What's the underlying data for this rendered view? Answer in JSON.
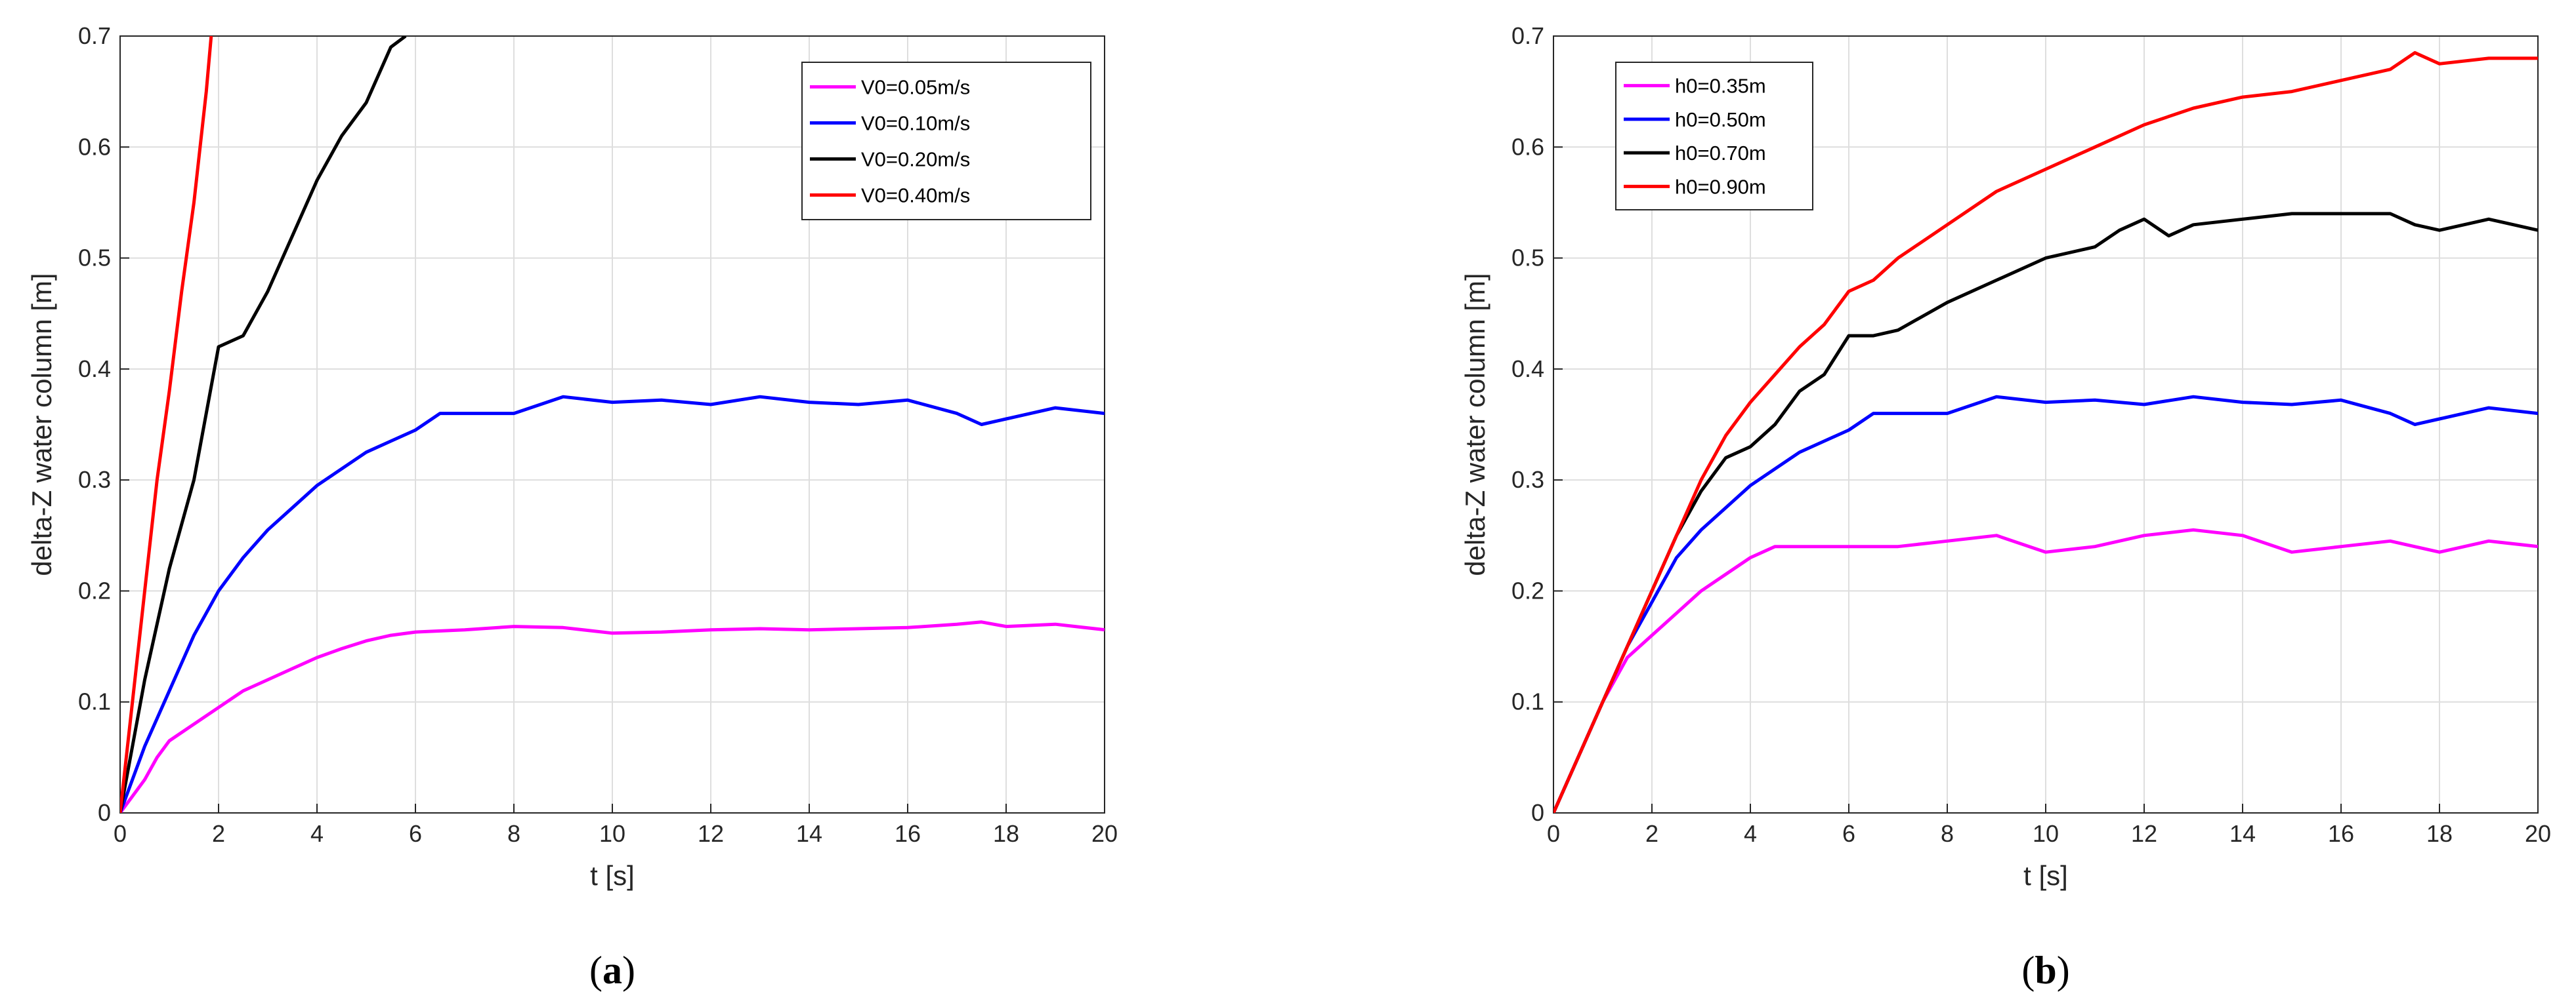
{
  "colors": {
    "magenta": "#ff00ff",
    "blue": "#0000ff",
    "black": "#000000",
    "red": "#ff0000",
    "grid": "#dedede",
    "axis": "#262626"
  },
  "chart_data": [
    {
      "type": "line",
      "panel_caption": {
        "open": "(",
        "letter": "a",
        "close": ")"
      },
      "xlabel": "t [s]",
      "ylabel": "delta-Z water column [m]",
      "xlim": [
        0,
        20
      ],
      "ylim": [
        0,
        0.7
      ],
      "xticks": [
        "0",
        "2",
        "4",
        "6",
        "8",
        "10",
        "12",
        "14",
        "16",
        "18",
        "20"
      ],
      "yticks": [
        "0",
        "0.1",
        "0.2",
        "0.3",
        "0.4",
        "0.5",
        "0.6",
        "0.7"
      ],
      "grid": true,
      "legend_position": "top-right",
      "series": [
        {
          "name": "V0=0.05m/s",
          "color": "#ff00ff",
          "x": [
            0,
            0.25,
            0.5,
            0.75,
            1.0,
            1.5,
            2.0,
            2.5,
            3.0,
            3.5,
            4.0,
            4.5,
            5.0,
            5.5,
            6.0,
            7.0,
            8.0,
            9.0,
            10.0,
            11.0,
            12.0,
            13.0,
            14.0,
            15.0,
            16.0,
            17.0,
            17.5,
            18.0,
            19.0,
            20.0
          ],
          "y": [
            0,
            0.015,
            0.03,
            0.05,
            0.065,
            0.08,
            0.095,
            0.11,
            0.12,
            0.13,
            0.14,
            0.148,
            0.155,
            0.16,
            0.163,
            0.165,
            0.168,
            0.167,
            0.162,
            0.163,
            0.165,
            0.166,
            0.165,
            0.166,
            0.167,
            0.17,
            0.172,
            0.168,
            0.17,
            0.165
          ]
        },
        {
          "name": "V0=0.10m/s",
          "color": "#0000ff",
          "x": [
            0,
            0.5,
            1.0,
            1.5,
            2.0,
            2.5,
            3.0,
            3.5,
            4.0,
            4.5,
            5.0,
            5.5,
            6.0,
            6.5,
            7.0,
            8.0,
            9.0,
            10.0,
            11.0,
            12.0,
            13.0,
            14.0,
            15.0,
            16.0,
            17.0,
            17.5,
            18.0,
            19.0,
            20.0
          ],
          "y": [
            0,
            0.06,
            0.11,
            0.16,
            0.2,
            0.23,
            0.255,
            0.275,
            0.295,
            0.31,
            0.325,
            0.335,
            0.345,
            0.36,
            0.36,
            0.36,
            0.375,
            0.37,
            0.372,
            0.368,
            0.375,
            0.37,
            0.368,
            0.372,
            0.36,
            0.35,
            0.355,
            0.365,
            0.36
          ]
        },
        {
          "name": "V0=0.20m/s",
          "color": "#000000",
          "x": [
            0,
            0.25,
            0.5,
            1.0,
            1.5,
            2.0,
            2.5,
            3.0,
            3.5,
            4.0,
            4.5,
            5.0,
            5.5,
            5.8
          ],
          "y": [
            0,
            0.06,
            0.12,
            0.22,
            0.3,
            0.42,
            0.43,
            0.47,
            0.52,
            0.57,
            0.61,
            0.64,
            0.69,
            0.7
          ]
        },
        {
          "name": "V0=0.40m/s",
          "color": "#ff0000",
          "x": [
            0,
            0.25,
            0.5,
            0.75,
            1.0,
            1.25,
            1.5,
            1.75,
            1.85
          ],
          "y": [
            0,
            0.1,
            0.2,
            0.3,
            0.38,
            0.47,
            0.55,
            0.65,
            0.7
          ]
        }
      ]
    },
    {
      "type": "line",
      "panel_caption": {
        "open": "(",
        "letter": "b",
        "close": ")"
      },
      "xlabel": "t [s]",
      "ylabel": "delta-Z water column [m]",
      "xlim": [
        0,
        20
      ],
      "ylim": [
        0,
        0.7
      ],
      "xticks": [
        "0",
        "2",
        "4",
        "6",
        "8",
        "10",
        "12",
        "14",
        "16",
        "18",
        "20"
      ],
      "yticks": [
        "0",
        "0.1",
        "0.2",
        "0.3",
        "0.4",
        "0.5",
        "0.6",
        "0.7"
      ],
      "grid": true,
      "legend_position": "top-left",
      "series": [
        {
          "name": "h0=0.35m",
          "color": "#ff00ff",
          "x": [
            0,
            0.5,
            1.0,
            1.5,
            2.0,
            2.5,
            3.0,
            3.5,
            4.0,
            4.5,
            5.0,
            6.0,
            7.0,
            8.0,
            9.0,
            10.0,
            11.0,
            12.0,
            13.0,
            14.0,
            15.0,
            16.0,
            17.0,
            18.0,
            19.0,
            20.0
          ],
          "y": [
            0,
            0.05,
            0.1,
            0.14,
            0.16,
            0.18,
            0.2,
            0.215,
            0.23,
            0.24,
            0.24,
            0.24,
            0.24,
            0.245,
            0.25,
            0.235,
            0.24,
            0.25,
            0.255,
            0.25,
            0.235,
            0.24,
            0.245,
            0.235,
            0.245,
            0.24
          ]
        },
        {
          "name": "h0=0.50m",
          "color": "#0000ff",
          "x": [
            0,
            0.5,
            1.0,
            1.5,
            2.0,
            2.5,
            3.0,
            3.5,
            4.0,
            4.5,
            5.0,
            5.5,
            6.0,
            6.5,
            7.0,
            8.0,
            9.0,
            10.0,
            11.0,
            12.0,
            13.0,
            14.0,
            15.0,
            16.0,
            17.0,
            17.5,
            18.0,
            19.0,
            20.0
          ],
          "y": [
            0,
            0.05,
            0.1,
            0.15,
            0.19,
            0.23,
            0.255,
            0.275,
            0.295,
            0.31,
            0.325,
            0.335,
            0.345,
            0.36,
            0.36,
            0.36,
            0.375,
            0.37,
            0.372,
            0.368,
            0.375,
            0.37,
            0.368,
            0.372,
            0.36,
            0.35,
            0.355,
            0.365,
            0.36
          ]
        },
        {
          "name": "h0=0.70m",
          "color": "#000000",
          "x": [
            0,
            0.5,
            1.0,
            1.5,
            2.0,
            2.5,
            3.0,
            3.5,
            4.0,
            4.5,
            5.0,
            5.5,
            6.0,
            6.5,
            7.0,
            8.0,
            9.0,
            10.0,
            11.0,
            11.5,
            12.0,
            12.5,
            13.0,
            14.0,
            15.0,
            16.0,
            17.0,
            17.5,
            18.0,
            19.0,
            20.0
          ],
          "y": [
            0,
            0.05,
            0.1,
            0.15,
            0.2,
            0.25,
            0.29,
            0.32,
            0.33,
            0.35,
            0.38,
            0.395,
            0.43,
            0.43,
            0.435,
            0.46,
            0.48,
            0.5,
            0.51,
            0.525,
            0.535,
            0.52,
            0.53,
            0.535,
            0.54,
            0.54,
            0.54,
            0.53,
            0.525,
            0.535,
            0.525
          ]
        },
        {
          "name": "h0=0.90m",
          "color": "#ff0000",
          "x": [
            0,
            0.5,
            1.0,
            1.5,
            2.0,
            2.5,
            3.0,
            3.5,
            4.0,
            4.5,
            5.0,
            5.5,
            6.0,
            6.5,
            7.0,
            8.0,
            9.0,
            10.0,
            11.0,
            12.0,
            13.0,
            14.0,
            15.0,
            16.0,
            17.0,
            17.5,
            18.0,
            19.0,
            20.0
          ],
          "y": [
            0,
            0.05,
            0.1,
            0.15,
            0.2,
            0.25,
            0.3,
            0.34,
            0.37,
            0.395,
            0.42,
            0.44,
            0.47,
            0.48,
            0.5,
            0.53,
            0.56,
            0.58,
            0.6,
            0.62,
            0.635,
            0.645,
            0.65,
            0.66,
            0.67,
            0.685,
            0.675,
            0.68,
            0.68
          ]
        }
      ]
    }
  ]
}
